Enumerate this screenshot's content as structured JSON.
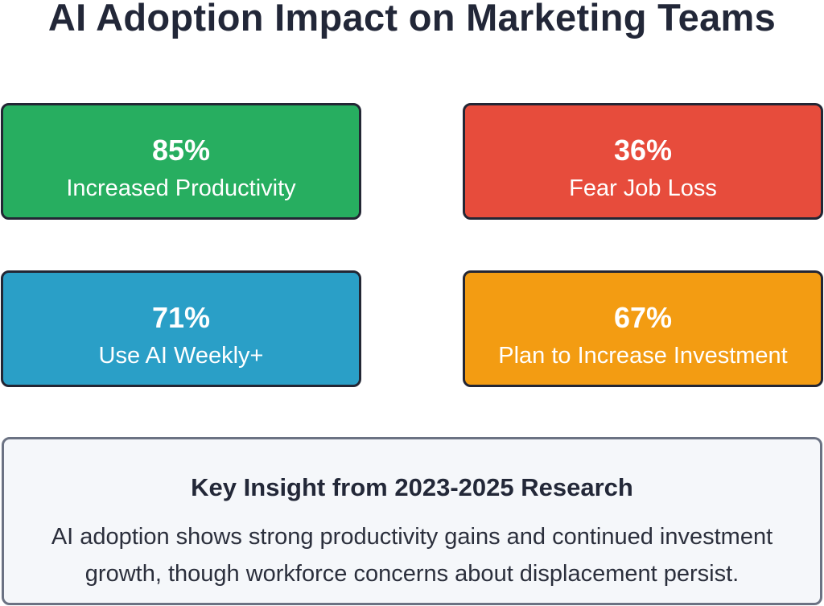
{
  "title": "AI Adoption Impact on Marketing Teams",
  "colors": {
    "green": "#27ae60",
    "red": "#e74c3c",
    "blue": "#2a9fc7",
    "orange": "#f39c12",
    "border": "#232634",
    "insight_bg": "#f5f7fa",
    "insight_border": "#6b7283"
  },
  "stats": [
    {
      "value": "85%",
      "label": "Increased Productivity",
      "color": "#27ae60"
    },
    {
      "value": "36%",
      "label": "Fear Job Loss",
      "color": "#e74c3c"
    },
    {
      "value": "71%",
      "label": "Use AI Weekly+",
      "color": "#2a9fc7"
    },
    {
      "value": "67%",
      "label": "Plan to Increase Investment",
      "color": "#f39c12"
    }
  ],
  "insight": {
    "heading": "Key Insight from 2023-2025 Research",
    "line1": "AI adoption shows strong productivity gains and continued investment",
    "line2": "growth, though workforce concerns about displacement persist."
  }
}
